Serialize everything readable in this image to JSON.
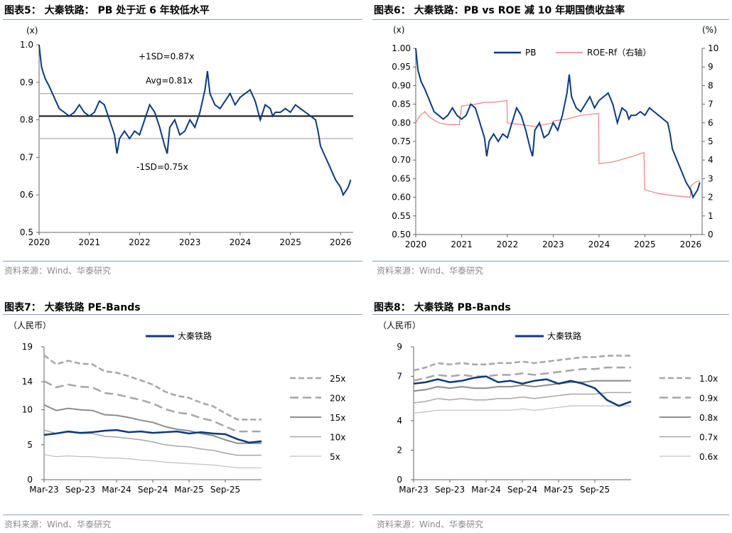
{
  "colors": {
    "navy": "#0b3a7e",
    "red": "#f08080",
    "gray_dark": "#8c8c8c",
    "gray_mid": "#a6a6a6",
    "gray_light": "#bfbfbf",
    "rule": "#8aa2c4"
  },
  "panels": [
    {
      "title": "图表5：  大秦铁路：  PB 处于近 6 年较低水平",
      "source": "资料来源：Wind、华泰研究"
    },
    {
      "title": "图表6：  大秦铁路：PB vs ROE 减 10 年期国债收益率",
      "source": "资料来源：Wind、华泰研究"
    },
    {
      "title": "图表7：  大秦铁路 PE-Bands",
      "source": "资料来源：Wind、华泰研究"
    },
    {
      "title": "图表8：  大秦铁路 PB-Bands",
      "source": "资料来源：Wind、华泰研究"
    }
  ],
  "chart_data": [
    {
      "type": "line",
      "unit_label": "(x)",
      "ylim": [
        0.5,
        1.0
      ],
      "yticks": [
        "0.5",
        "0.6",
        "0.7",
        "0.8",
        "0.9",
        "1.0"
      ],
      "xticks": [
        "2020",
        "2021",
        "2022",
        "2023",
        "2024",
        "2025",
        "2026"
      ],
      "xlim": [
        2020.0,
        2026.25
      ],
      "ref_lines": [
        {
          "label": "+1SD=0.87x",
          "value": 0.87
        },
        {
          "label": "Avg=0.81x",
          "value": 0.81
        },
        {
          "label": "-1SD=0.75x",
          "value": 0.75
        }
      ],
      "series": [
        {
          "x": [
            2020.0,
            2020.05,
            2020.12,
            2020.2,
            2020.3,
            2020.4,
            2020.5,
            2020.6,
            2020.7,
            2020.8,
            2020.9,
            2021.0,
            2021.1,
            2021.2,
            2021.3,
            2021.4,
            2021.5,
            2021.55,
            2021.6,
            2021.7,
            2021.8,
            2021.9,
            2022.0,
            2022.1,
            2022.2,
            2022.3,
            2022.4,
            2022.5,
            2022.55,
            2022.6,
            2022.7,
            2022.8,
            2022.9,
            2023.0,
            2023.1,
            2023.2,
            2023.3,
            2023.35,
            2023.4,
            2023.5,
            2023.6,
            2023.7,
            2023.8,
            2023.9,
            2024.0,
            2024.1,
            2024.2,
            2024.3,
            2024.4,
            2024.5,
            2024.6,
            2024.65,
            2024.7,
            2024.8,
            2024.9,
            2025.0,
            2025.1,
            2025.2,
            2025.3,
            2025.4,
            2025.5,
            2025.55,
            2025.6,
            2025.7,
            2025.8,
            2025.9,
            2026.0,
            2026.05,
            2026.1,
            2026.15,
            2026.2
          ],
          "values": [
            1.0,
            0.94,
            0.91,
            0.89,
            0.86,
            0.83,
            0.82,
            0.81,
            0.82,
            0.84,
            0.82,
            0.81,
            0.82,
            0.85,
            0.84,
            0.8,
            0.76,
            0.71,
            0.75,
            0.77,
            0.75,
            0.77,
            0.76,
            0.8,
            0.84,
            0.82,
            0.78,
            0.73,
            0.71,
            0.78,
            0.8,
            0.76,
            0.77,
            0.8,
            0.78,
            0.82,
            0.88,
            0.93,
            0.87,
            0.84,
            0.83,
            0.85,
            0.87,
            0.84,
            0.86,
            0.87,
            0.88,
            0.85,
            0.8,
            0.84,
            0.83,
            0.81,
            0.82,
            0.82,
            0.83,
            0.82,
            0.84,
            0.83,
            0.82,
            0.81,
            0.8,
            0.77,
            0.73,
            0.7,
            0.67,
            0.64,
            0.62,
            0.6,
            0.61,
            0.62,
            0.64
          ]
        }
      ]
    },
    {
      "type": "line",
      "unit_left": "(x)",
      "unit_right": "(%)",
      "ylim_left": [
        0.5,
        1.0
      ],
      "ylim_right": [
        0,
        10
      ],
      "yticks_left": [
        "0.50",
        "0.55",
        "0.60",
        "0.65",
        "0.70",
        "0.75",
        "0.80",
        "0.85",
        "0.90",
        "0.95",
        "1.00"
      ],
      "yticks_right": [
        "0",
        "1",
        "2",
        "3",
        "4",
        "5",
        "6",
        "7",
        "8",
        "9",
        "10"
      ],
      "xticks": [
        "2020",
        "2021",
        "2022",
        "2023",
        "2024",
        "2025",
        "2026"
      ],
      "xlim": [
        2020.0,
        2026.25
      ],
      "series": [
        {
          "name": "PB",
          "axis": "left",
          "x": [
            2020.0,
            2020.05,
            2020.12,
            2020.2,
            2020.3,
            2020.4,
            2020.5,
            2020.6,
            2020.7,
            2020.8,
            2020.9,
            2021.0,
            2021.1,
            2021.2,
            2021.3,
            2021.4,
            2021.5,
            2021.55,
            2021.6,
            2021.7,
            2021.8,
            2021.9,
            2022.0,
            2022.1,
            2022.2,
            2022.3,
            2022.4,
            2022.5,
            2022.55,
            2022.6,
            2022.7,
            2022.8,
            2022.9,
            2023.0,
            2023.1,
            2023.2,
            2023.3,
            2023.35,
            2023.4,
            2023.5,
            2023.6,
            2023.7,
            2023.8,
            2023.9,
            2024.0,
            2024.1,
            2024.2,
            2024.3,
            2024.4,
            2024.5,
            2024.6,
            2024.65,
            2024.7,
            2024.8,
            2024.9,
            2025.0,
            2025.1,
            2025.2,
            2025.3,
            2025.4,
            2025.5,
            2025.55,
            2025.6,
            2025.7,
            2025.8,
            2025.9,
            2026.0,
            2026.05,
            2026.1,
            2026.15,
            2026.2
          ],
          "values": [
            1.0,
            0.94,
            0.91,
            0.89,
            0.86,
            0.83,
            0.82,
            0.81,
            0.82,
            0.84,
            0.82,
            0.81,
            0.82,
            0.85,
            0.84,
            0.8,
            0.76,
            0.71,
            0.75,
            0.77,
            0.75,
            0.77,
            0.76,
            0.8,
            0.84,
            0.82,
            0.78,
            0.73,
            0.71,
            0.78,
            0.8,
            0.76,
            0.77,
            0.8,
            0.78,
            0.82,
            0.88,
            0.93,
            0.87,
            0.84,
            0.83,
            0.85,
            0.87,
            0.84,
            0.86,
            0.87,
            0.88,
            0.85,
            0.8,
            0.84,
            0.83,
            0.81,
            0.82,
            0.82,
            0.83,
            0.82,
            0.84,
            0.83,
            0.82,
            0.81,
            0.8,
            0.77,
            0.73,
            0.7,
            0.67,
            0.64,
            0.62,
            0.6,
            0.61,
            0.62,
            0.64
          ]
        },
        {
          "name": "ROE-Rf（右轴）",
          "axis": "right",
          "x": [
            2020.0,
            2020.1,
            2020.2,
            2020.3,
            2020.5,
            2020.7,
            2020.95,
            2021.0,
            2021.3,
            2021.5,
            2021.7,
            2021.99,
            2022.0,
            2022.3,
            2022.6,
            2022.99,
            2023.0,
            2023.3,
            2023.6,
            2023.99,
            2024.0,
            2024.3,
            2024.6,
            2024.98,
            2025.0,
            2025.3,
            2025.6,
            2025.99,
            2026.0,
            2026.1,
            2026.2
          ],
          "values": [
            6.0,
            6.4,
            6.6,
            6.3,
            6.0,
            5.9,
            5.9,
            6.9,
            7.0,
            7.1,
            7.1,
            7.2,
            6.0,
            5.9,
            5.8,
            6.0,
            6.1,
            6.2,
            6.4,
            6.5,
            3.8,
            3.9,
            4.1,
            4.4,
            2.4,
            2.2,
            2.1,
            2.0,
            2.6,
            2.8,
            2.9
          ]
        }
      ]
    },
    {
      "type": "line",
      "unit_label": "（人民币）",
      "ylim": [
        0,
        19
      ],
      "yticks": [
        "0",
        "5",
        "10",
        "14",
        "19"
      ],
      "ytick_values": [
        0,
        5,
        10,
        14,
        19
      ],
      "xticks": [
        "Mar-23",
        "Sep-23",
        "Mar-24",
        "Sep-24",
        "Mar-25",
        "Sep-25"
      ],
      "xlim": [
        0,
        36
      ],
      "xtick_values": [
        0,
        6,
        12,
        18,
        24,
        30
      ],
      "series": [
        {
          "name": "大秦铁路",
          "x": [
            0,
            2,
            4,
            6,
            8,
            10,
            12,
            14,
            16,
            18,
            20,
            22,
            24,
            26,
            28,
            30,
            32,
            34,
            36
          ],
          "values": [
            6.4,
            6.6,
            6.9,
            6.7,
            6.8,
            7.0,
            7.1,
            6.8,
            6.9,
            6.7,
            6.8,
            6.9,
            6.6,
            6.8,
            6.6,
            6.5,
            5.8,
            5.3,
            5.5
          ]
        },
        {
          "name": "25x",
          "x": [
            0,
            2,
            4,
            6,
            8,
            10,
            12,
            14,
            16,
            18,
            20,
            22,
            24,
            26,
            28,
            30,
            32,
            34,
            36
          ],
          "values": [
            17.8,
            16.5,
            17.0,
            16.6,
            16.5,
            15.5,
            15.3,
            14.8,
            14.2,
            13.6,
            12.6,
            12.0,
            11.7,
            11.0,
            10.5,
            9.5,
            8.6,
            8.6,
            8.6
          ]
        },
        {
          "name": "20x",
          "x": [
            0,
            2,
            4,
            6,
            8,
            10,
            12,
            14,
            16,
            18,
            20,
            22,
            24,
            26,
            28,
            30,
            32,
            34,
            36
          ],
          "values": [
            14.1,
            13.2,
            13.6,
            13.3,
            13.2,
            12.4,
            12.2,
            11.8,
            11.4,
            10.9,
            10.1,
            9.6,
            9.4,
            8.8,
            8.4,
            7.6,
            6.9,
            6.9,
            6.9
          ]
        },
        {
          "name": "15x",
          "x": [
            0,
            2,
            4,
            6,
            8,
            10,
            12,
            14,
            16,
            18,
            20,
            22,
            24,
            26,
            28,
            30,
            32,
            34,
            36
          ],
          "values": [
            10.7,
            9.9,
            10.2,
            10.0,
            9.9,
            9.3,
            9.2,
            8.9,
            8.5,
            8.2,
            7.6,
            7.2,
            7.0,
            6.6,
            6.3,
            5.7,
            5.2,
            5.2,
            5.2
          ]
        },
        {
          "name": "10x",
          "x": [
            0,
            2,
            4,
            6,
            8,
            10,
            12,
            14,
            16,
            18,
            20,
            22,
            24,
            26,
            28,
            30,
            32,
            34,
            36
          ],
          "values": [
            7.1,
            6.6,
            6.8,
            6.6,
            6.6,
            6.2,
            6.1,
            5.9,
            5.7,
            5.4,
            5.0,
            4.8,
            4.7,
            4.4,
            4.2,
            3.8,
            3.5,
            3.5,
            3.5
          ]
        },
        {
          "name": "5x",
          "x": [
            0,
            2,
            4,
            6,
            8,
            10,
            12,
            14,
            16,
            18,
            20,
            22,
            24,
            26,
            28,
            30,
            32,
            34,
            36
          ],
          "values": [
            3.6,
            3.3,
            3.4,
            3.3,
            3.3,
            3.1,
            3.1,
            3.0,
            2.8,
            2.7,
            2.5,
            2.4,
            2.3,
            2.2,
            2.1,
            1.9,
            1.7,
            1.7,
            1.7
          ]
        }
      ]
    },
    {
      "type": "line",
      "unit_label": "（人民币）",
      "ylim": [
        0,
        9
      ],
      "yticks": [
        "0",
        "2",
        "4",
        "7",
        "9"
      ],
      "ytick_values": [
        0,
        2,
        4,
        7,
        9
      ],
      "xticks": [
        "Mar-23",
        "Sep-23",
        "Mar-24",
        "Sep-24",
        "Mar-25",
        "Sep-25"
      ],
      "xlim": [
        0,
        36
      ],
      "xtick_values": [
        0,
        6,
        12,
        18,
        24,
        30
      ],
      "series": [
        {
          "name": "大秦铁路",
          "x": [
            0,
            2,
            4,
            6,
            8,
            10,
            12,
            14,
            16,
            18,
            20,
            22,
            24,
            26,
            28,
            30,
            32,
            34,
            36
          ],
          "values": [
            6.5,
            6.6,
            6.8,
            6.6,
            6.7,
            6.9,
            7.0,
            6.6,
            6.7,
            6.5,
            6.7,
            6.8,
            6.5,
            6.7,
            6.5,
            6.2,
            5.4,
            5.0,
            5.3
          ]
        },
        {
          "name": "1.0x",
          "x": [
            0,
            2,
            4,
            6,
            8,
            10,
            12,
            14,
            16,
            18,
            20,
            22,
            24,
            26,
            28,
            30,
            32,
            34,
            36
          ],
          "values": [
            7.4,
            7.6,
            7.9,
            7.8,
            7.9,
            7.8,
            7.8,
            7.9,
            7.9,
            8.0,
            7.9,
            8.0,
            8.1,
            8.2,
            8.3,
            8.3,
            8.4,
            8.4,
            8.4
          ]
        },
        {
          "name": "0.9x",
          "x": [
            0,
            2,
            4,
            6,
            8,
            10,
            12,
            14,
            16,
            18,
            20,
            22,
            24,
            26,
            28,
            30,
            32,
            34,
            36
          ],
          "values": [
            6.7,
            6.9,
            7.1,
            7.0,
            7.1,
            7.0,
            7.0,
            7.1,
            7.1,
            7.2,
            7.1,
            7.2,
            7.3,
            7.4,
            7.5,
            7.5,
            7.6,
            7.6,
            7.6
          ]
        },
        {
          "name": "0.8x",
          "x": [
            0,
            2,
            4,
            6,
            8,
            10,
            12,
            14,
            16,
            18,
            20,
            22,
            24,
            26,
            28,
            30,
            32,
            34,
            36
          ],
          "values": [
            6.0,
            6.1,
            6.3,
            6.2,
            6.3,
            6.2,
            6.2,
            6.3,
            6.3,
            6.4,
            6.3,
            6.4,
            6.5,
            6.6,
            6.6,
            6.7,
            6.7,
            6.7,
            6.7
          ]
        },
        {
          "name": "0.7x",
          "x": [
            0,
            2,
            4,
            6,
            8,
            10,
            12,
            14,
            16,
            18,
            20,
            22,
            24,
            26,
            28,
            30,
            32,
            34,
            36
          ],
          "values": [
            5.2,
            5.3,
            5.5,
            5.4,
            5.5,
            5.4,
            5.4,
            5.5,
            5.5,
            5.6,
            5.5,
            5.6,
            5.7,
            5.8,
            5.8,
            5.8,
            5.9,
            5.9,
            5.9
          ]
        },
        {
          "name": "0.6x",
          "x": [
            0,
            2,
            4,
            6,
            8,
            10,
            12,
            14,
            16,
            18,
            20,
            22,
            24,
            26,
            28,
            30,
            32,
            34,
            36
          ],
          "values": [
            4.5,
            4.6,
            4.7,
            4.7,
            4.7,
            4.7,
            4.7,
            4.7,
            4.7,
            4.8,
            4.7,
            4.8,
            4.9,
            5.0,
            5.0,
            5.0,
            5.0,
            5.0,
            5.0
          ]
        }
      ]
    }
  ]
}
